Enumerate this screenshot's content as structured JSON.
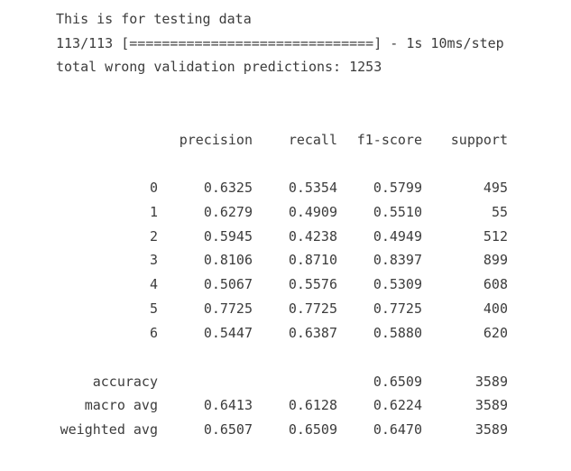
{
  "header": {
    "line1": "This is for testing data",
    "line2": "113/113 [==============================] - 1s 10ms/step",
    "line3": "total wrong validation predictions: 1253"
  },
  "report": {
    "columns": [
      "precision",
      "recall",
      "f1-score",
      "support"
    ],
    "class_rows": [
      {
        "label": "0",
        "precision": "0.6325",
        "recall": "0.5354",
        "f1": "0.5799",
        "support": "495"
      },
      {
        "label": "1",
        "precision": "0.6279",
        "recall": "0.4909",
        "f1": "0.5510",
        "support": "55"
      },
      {
        "label": "2",
        "precision": "0.5945",
        "recall": "0.4238",
        "f1": "0.4949",
        "support": "512"
      },
      {
        "label": "3",
        "precision": "0.8106",
        "recall": "0.8710",
        "f1": "0.8397",
        "support": "899"
      },
      {
        "label": "4",
        "precision": "0.5067",
        "recall": "0.5576",
        "f1": "0.5309",
        "support": "608"
      },
      {
        "label": "5",
        "precision": "0.7725",
        "recall": "0.7725",
        "f1": "0.7725",
        "support": "400"
      },
      {
        "label": "6",
        "precision": "0.5447",
        "recall": "0.6387",
        "f1": "0.5880",
        "support": "620"
      }
    ],
    "summary_rows": [
      {
        "label": "accuracy",
        "precision": "",
        "recall": "",
        "f1": "0.6509",
        "support": "3589"
      },
      {
        "label": "macro avg",
        "precision": "0.6413",
        "recall": "0.6128",
        "f1": "0.6224",
        "support": "3589"
      },
      {
        "label": "weighted avg",
        "precision": "0.6507",
        "recall": "0.6509",
        "f1": "0.6470",
        "support": "3589"
      }
    ]
  }
}
